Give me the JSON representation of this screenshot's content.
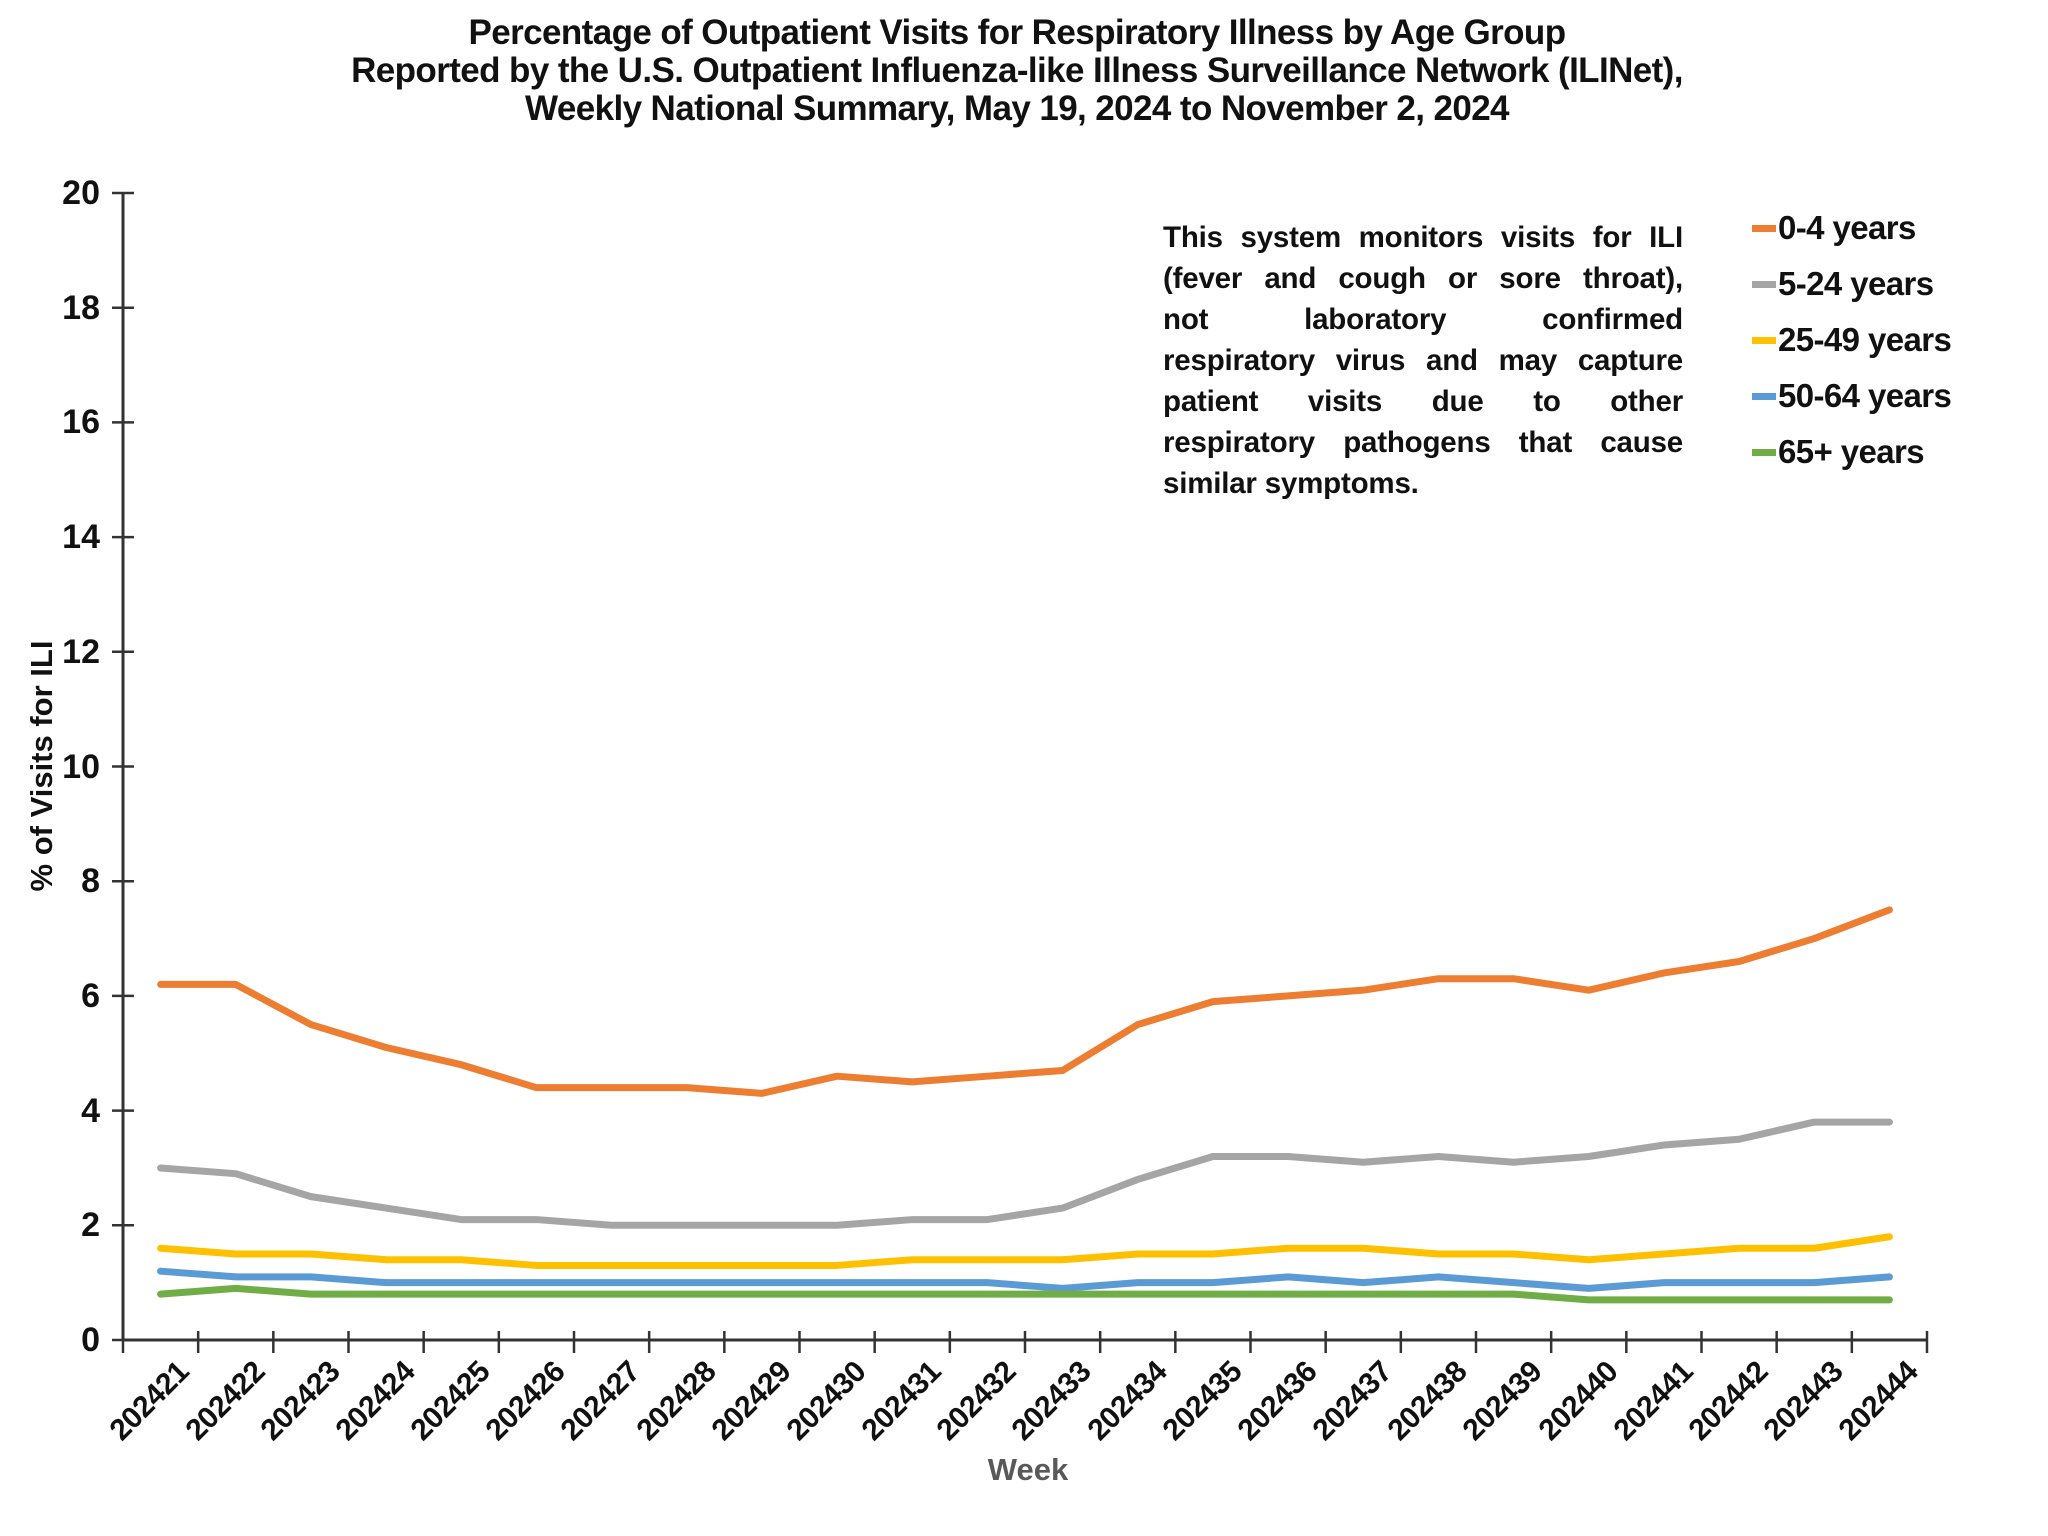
{
  "title": {
    "lines": [
      "Percentage of Outpatient Visits for Respiratory Illness by Age Group",
      "Reported by the U.S. Outpatient Influenza-like Illness Surveillance Network (ILINet),",
      "Weekly National Summary, May 19, 2024 to November 2, 2024"
    ]
  },
  "annotation": {
    "lines": [
      "This system monitors visits for ILI",
      "(fever and cough or sore throat),",
      "not laboratory confirmed",
      "respiratory virus and may capture",
      "patient visits due to other",
      "respiratory pathogens that cause",
      "similar symptoms."
    ]
  },
  "chart_data": {
    "type": "line",
    "title": "Percentage of Outpatient Visits for Respiratory Illness by Age Group Reported by the U.S. Outpatient Influenza-like Illness Surveillance Network (ILINet), Weekly National Summary, May 19, 2024 to November 2, 2024",
    "xlabel": "Week",
    "ylabel": "% of Visits for ILI",
    "ylim": [
      0,
      20
    ],
    "yticks": [
      0,
      2,
      4,
      6,
      8,
      10,
      12,
      14,
      16,
      18,
      20
    ],
    "grid": false,
    "legend_position": "top-right",
    "categories": [
      "202421",
      "202422",
      "202423",
      "202424",
      "202425",
      "202426",
      "202427",
      "202428",
      "202429",
      "202430",
      "202431",
      "202432",
      "202433",
      "202434",
      "202435",
      "202436",
      "202437",
      "202438",
      "202439",
      "202440",
      "202441",
      "202442",
      "202443",
      "202444"
    ],
    "series": [
      {
        "name": "0-4 years",
        "color": "#ED7D31",
        "values": [
          6.2,
          6.2,
          5.5,
          5.1,
          4.8,
          4.4,
          4.4,
          4.4,
          4.3,
          4.6,
          4.5,
          4.6,
          4.7,
          5.5,
          5.9,
          6.0,
          6.1,
          6.3,
          6.3,
          6.1,
          6.4,
          6.6,
          7.0,
          7.5
        ]
      },
      {
        "name": "5-24 years",
        "color": "#A5A5A5",
        "values": [
          3.0,
          2.9,
          2.5,
          2.3,
          2.1,
          2.1,
          2.0,
          2.0,
          2.0,
          2.0,
          2.1,
          2.1,
          2.3,
          2.8,
          3.2,
          3.2,
          3.1,
          3.2,
          3.1,
          3.2,
          3.4,
          3.5,
          3.8,
          3.8
        ]
      },
      {
        "name": "25-49 years",
        "color": "#FFC000",
        "values": [
          1.6,
          1.5,
          1.5,
          1.4,
          1.4,
          1.3,
          1.3,
          1.3,
          1.3,
          1.3,
          1.4,
          1.4,
          1.4,
          1.5,
          1.5,
          1.6,
          1.6,
          1.5,
          1.5,
          1.4,
          1.5,
          1.6,
          1.6,
          1.8
        ]
      },
      {
        "name": "50-64 years",
        "color": "#5B9BD5",
        "values": [
          1.2,
          1.1,
          1.1,
          1.0,
          1.0,
          1.0,
          1.0,
          1.0,
          1.0,
          1.0,
          1.0,
          1.0,
          0.9,
          1.0,
          1.0,
          1.1,
          1.0,
          1.1,
          1.0,
          0.9,
          1.0,
          1.0,
          1.0,
          1.1
        ]
      },
      {
        "name": "65+ years",
        "color": "#70AD47",
        "values": [
          0.8,
          0.9,
          0.8,
          0.8,
          0.8,
          0.8,
          0.8,
          0.8,
          0.8,
          0.8,
          0.8,
          0.8,
          0.8,
          0.8,
          0.8,
          0.8,
          0.8,
          0.8,
          0.8,
          0.7,
          0.7,
          0.7,
          0.7,
          0.7
        ]
      }
    ]
  }
}
